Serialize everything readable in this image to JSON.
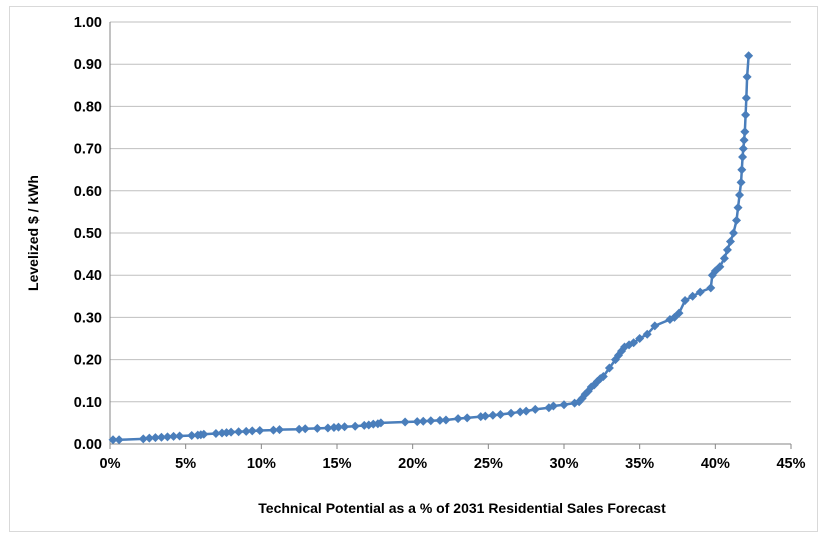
{
  "chart_data": {
    "type": "line",
    "title": "",
    "xlabel": "Technical Potential as a % of 2031 Residential Sales Forecast",
    "ylabel": "Levelized $ / kWh",
    "xlim": [
      0,
      45
    ],
    "ylim": [
      0,
      1.0
    ],
    "grid": "horizontal",
    "marker": "diamond",
    "colors": {
      "series": "#4a7ebb",
      "grid": "#bfbfbf",
      "axis": "#868686"
    },
    "x_tick_labels": [
      "0%",
      "5%",
      "10%",
      "15%",
      "20%",
      "25%",
      "30%",
      "35%",
      "40%",
      "45%"
    ],
    "y_tick_labels": [
      "0.00",
      "0.10",
      "0.20",
      "0.30",
      "0.40",
      "0.50",
      "0.60",
      "0.70",
      "0.80",
      "0.90",
      "1.00"
    ],
    "series": [
      {
        "x": [
          0.2,
          0.6,
          2.2,
          2.6,
          3.0,
          3.4,
          3.8,
          4.2,
          4.6,
          5.4,
          5.8,
          6.0,
          6.2,
          7.0,
          7.4,
          7.7,
          8.0,
          8.5,
          9.0,
          9.4,
          9.9,
          10.8,
          11.2,
          12.5,
          12.9,
          13.7,
          14.4,
          14.8,
          15.1,
          15.5,
          16.2,
          16.8,
          17.1,
          17.4,
          17.7,
          17.9,
          19.5,
          20.3,
          20.7,
          21.2,
          21.8,
          22.2,
          23.0,
          23.6,
          24.5,
          24.8,
          25.3,
          25.8,
          26.5,
          27.1,
          27.5,
          28.1,
          29.0,
          29.3,
          30.0,
          30.7,
          31.0,
          31.2,
          31.4,
          31.6,
          31.8,
          32.0,
          32.2,
          32.4,
          32.6,
          33.0,
          33.4,
          33.6,
          33.8,
          34.0,
          34.3,
          34.6,
          35.0,
          35.5,
          36.0,
          37.0,
          37.3,
          37.6,
          38.0,
          38.5,
          39.0,
          39.7,
          39.8,
          40.0,
          40.3,
          40.6,
          40.8,
          41.0,
          41.2,
          41.4,
          41.5,
          41.6,
          41.7,
          41.75,
          41.8,
          41.85,
          41.9,
          41.95,
          42.0,
          42.05,
          42.1,
          42.2
        ],
        "y": [
          0.01,
          0.01,
          0.012,
          0.014,
          0.015,
          0.016,
          0.017,
          0.018,
          0.019,
          0.02,
          0.021,
          0.022,
          0.023,
          0.025,
          0.026,
          0.027,
          0.028,
          0.029,
          0.03,
          0.031,
          0.032,
          0.033,
          0.034,
          0.035,
          0.036,
          0.037,
          0.038,
          0.039,
          0.04,
          0.041,
          0.042,
          0.044,
          0.045,
          0.047,
          0.048,
          0.05,
          0.052,
          0.053,
          0.054,
          0.055,
          0.056,
          0.057,
          0.06,
          0.062,
          0.065,
          0.066,
          0.068,
          0.07,
          0.073,
          0.076,
          0.078,
          0.082,
          0.086,
          0.09,
          0.093,
          0.097,
          0.1,
          0.108,
          0.118,
          0.125,
          0.135,
          0.14,
          0.148,
          0.155,
          0.16,
          0.18,
          0.2,
          0.21,
          0.22,
          0.23,
          0.235,
          0.24,
          0.25,
          0.26,
          0.28,
          0.295,
          0.3,
          0.31,
          0.34,
          0.35,
          0.36,
          0.37,
          0.4,
          0.41,
          0.42,
          0.44,
          0.46,
          0.48,
          0.5,
          0.53,
          0.56,
          0.59,
          0.62,
          0.65,
          0.68,
          0.7,
          0.72,
          0.74,
          0.78,
          0.82,
          0.87,
          0.92
        ]
      }
    ]
  }
}
